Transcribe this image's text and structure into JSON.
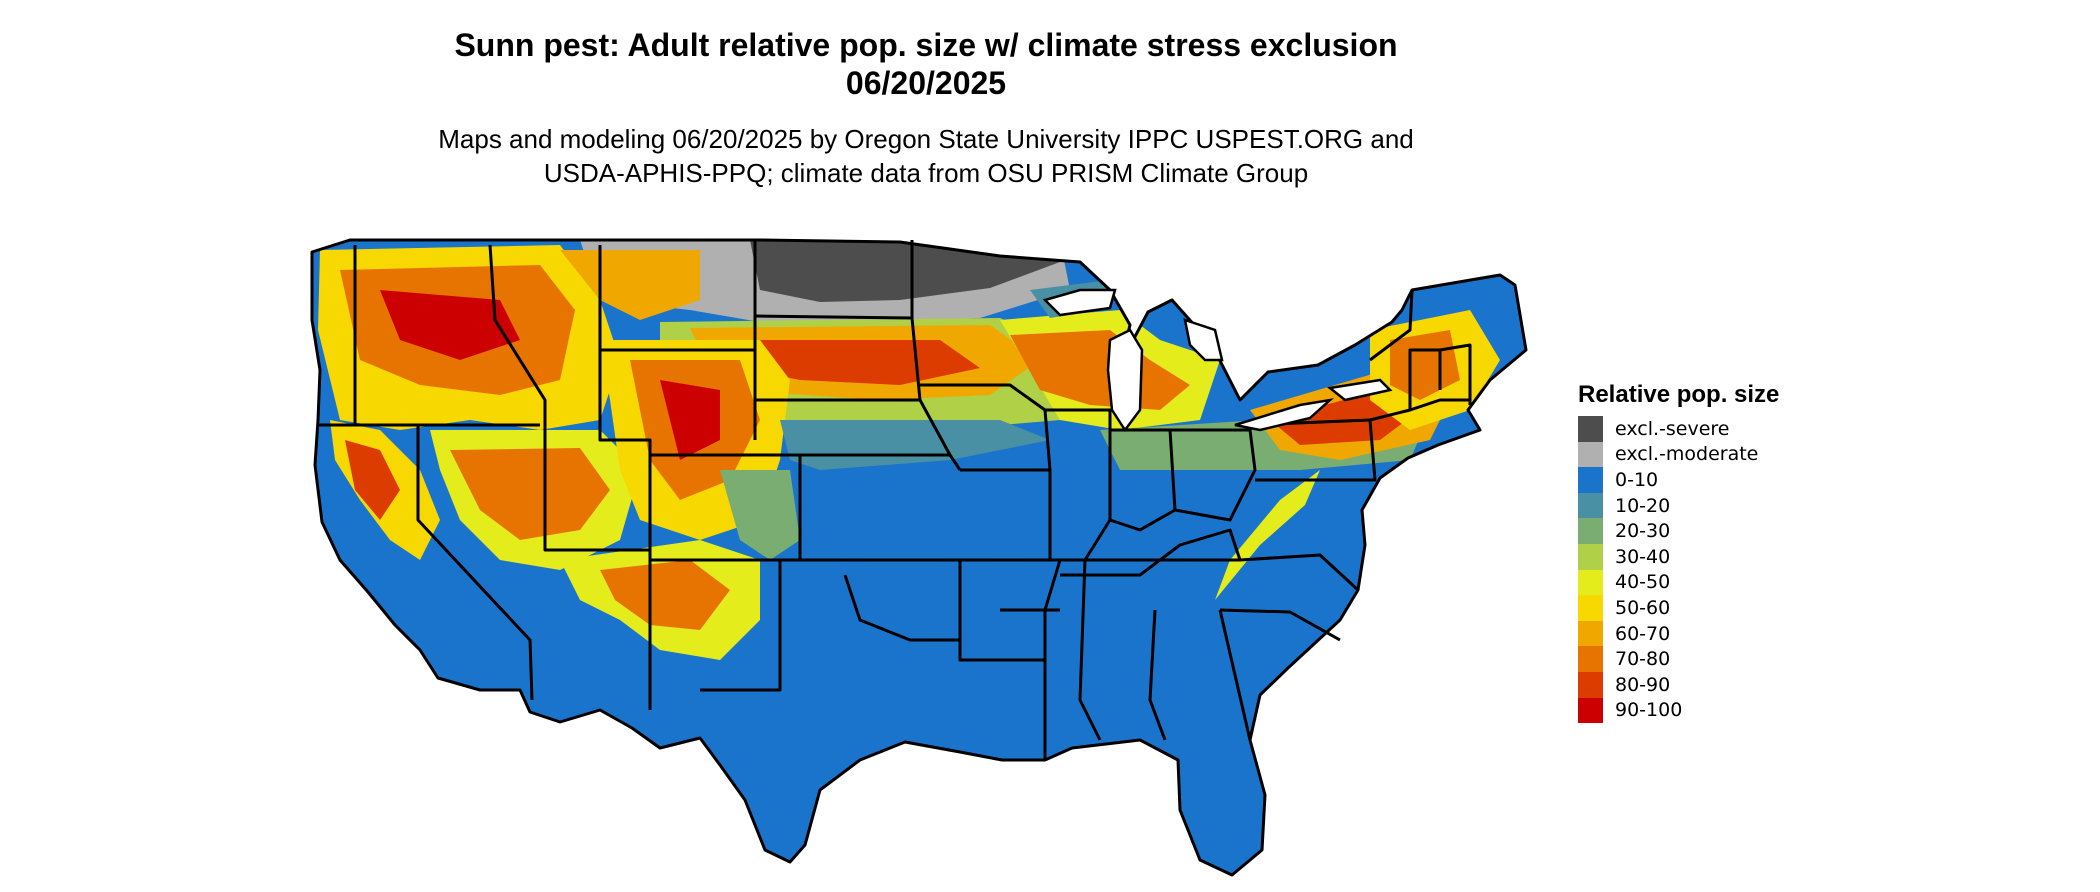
{
  "title_line1": "Sunn pest: Adult relative pop. size w/ climate stress exclusion",
  "title_line2": "06/20/2025",
  "subtitle_line1": "Maps and modeling 06/20/2025 by Oregon State University IPPC USPEST.ORG and",
  "subtitle_line2": "USDA-APHIS-PPQ; climate data from OSU PRISM Climate Group",
  "legend": {
    "title": "Relative pop. size",
    "items": [
      {
        "label": "excl.-severe",
        "color": "#4d4d4d"
      },
      {
        "label": "excl.-moderate",
        "color": "#b0b0b0"
      },
      {
        "label": "0-10",
        "color": "#1b74cc"
      },
      {
        "label": "10-20",
        "color": "#4a90a4"
      },
      {
        "label": "20-30",
        "color": "#79ad72"
      },
      {
        "label": "30-40",
        "color": "#b0d048"
      },
      {
        "label": "40-50",
        "color": "#e4ec1c"
      },
      {
        "label": "50-60",
        "color": "#f7d800"
      },
      {
        "label": "60-70",
        "color": "#f0a800"
      },
      {
        "label": "70-80",
        "color": "#e87400"
      },
      {
        "label": "80-90",
        "color": "#dc3c00"
      },
      {
        "label": "90-100",
        "color": "#cc0000"
      }
    ]
  }
}
